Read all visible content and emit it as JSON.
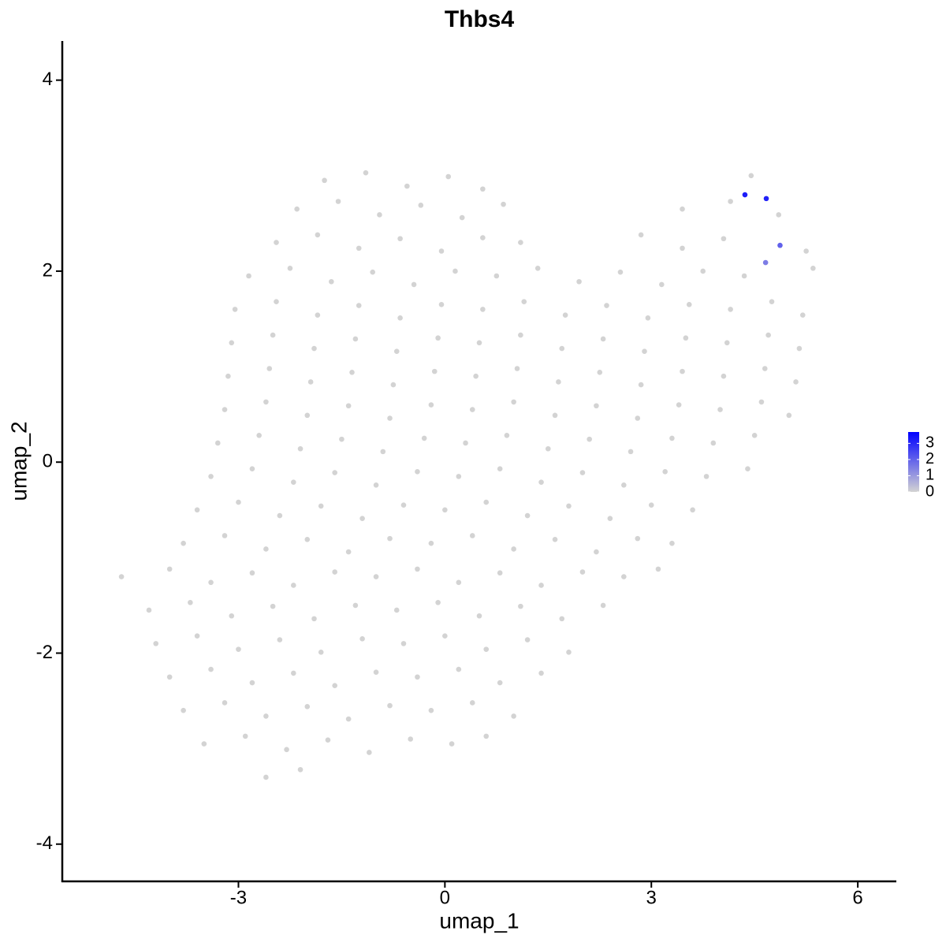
{
  "chart_data": {
    "type": "scatter",
    "title": "Thbs4",
    "x_label": "umap_1",
    "y_label": "umap_2",
    "xlim": [
      -5.56,
      6.56
    ],
    "ylim": [
      -4.39,
      4.41
    ],
    "xticks": [
      -3,
      0,
      3,
      6
    ],
    "yticks": [
      -4,
      -2,
      0,
      2,
      4
    ],
    "color_low": "#d3d3d3",
    "color_high": "#0000ff",
    "color_lim": [
      0,
      3.7
    ],
    "color_ticks": [
      0,
      1,
      2,
      3
    ],
    "x": [
      -1.75,
      -1.15,
      -0.55,
      0.05,
      0.55,
      4.45,
      -2.15,
      -1.55,
      -0.95,
      -0.35,
      0.25,
      0.85,
      3.45,
      4.15,
      4.85,
      -2.45,
      -1.85,
      -1.25,
      -0.65,
      -0.05,
      0.55,
      1.1,
      2.85,
      3.45,
      4.05,
      5.25,
      -2.85,
      -2.25,
      -1.65,
      -1.05,
      -0.45,
      0.15,
      0.75,
      1.35,
      1.95,
      2.55,
      3.15,
      3.75,
      4.35,
      5.35,
      -3.05,
      -2.45,
      -1.85,
      -1.25,
      -0.65,
      -0.05,
      0.55,
      1.15,
      1.75,
      2.35,
      2.95,
      3.55,
      4.15,
      4.75,
      5.2,
      -3.1,
      -2.5,
      -1.9,
      -1.3,
      -0.7,
      -0.1,
      0.5,
      1.1,
      1.7,
      2.3,
      2.9,
      3.5,
      4.1,
      4.7,
      5.15,
      -3.15,
      -2.55,
      -1.95,
      -1.35,
      -0.75,
      -0.15,
      0.45,
      1.05,
      1.65,
      2.25,
      2.85,
      3.45,
      4.05,
      4.65,
      5.1,
      -3.2,
      -2.6,
      -2.0,
      -1.4,
      -0.8,
      -0.2,
      0.4,
      1.0,
      1.6,
      2.2,
      2.8,
      3.4,
      4.0,
      4.6,
      5.0,
      -3.3,
      -2.7,
      -2.1,
      -1.5,
      -0.9,
      -0.3,
      0.3,
      0.9,
      1.5,
      2.1,
      2.7,
      3.3,
      3.9,
      4.5,
      -3.4,
      -2.8,
      -2.2,
      -1.6,
      -1.0,
      -0.4,
      0.2,
      0.8,
      1.4,
      2.0,
      2.6,
      3.2,
      3.8,
      4.4,
      -3.6,
      -3.0,
      -2.4,
      -1.8,
      -1.2,
      -0.6,
      0,
      0.6,
      1.2,
      1.8,
      2.4,
      3.0,
      3.6,
      -3.8,
      -3.2,
      -2.6,
      -2.0,
      -1.4,
      -0.8,
      -0.2,
      0.4,
      1.0,
      1.6,
      2.2,
      2.8,
      3.3,
      -4.7,
      -4.0,
      -3.4,
      -2.8,
      -2.2,
      -1.6,
      -1.0,
      -0.4,
      0.2,
      0.8,
      1.4,
      2.0,
      2.6,
      3.1,
      -4.3,
      -3.7,
      -3.1,
      -2.5,
      -1.9,
      -1.3,
      -0.7,
      -0.1,
      0.5,
      1.1,
      1.7,
      2.3,
      -4.2,
      -3.6,
      -3.0,
      -2.4,
      -1.8,
      -1.2,
      -0.6,
      0,
      0.6,
      1.2,
      1.8,
      -4.0,
      -3.4,
      -2.8,
      -2.2,
      -1.6,
      -1.0,
      -0.4,
      0.2,
      0.8,
      1.4,
      -3.8,
      -3.2,
      -2.6,
      -2.0,
      -1.4,
      -0.8,
      -0.2,
      0.4,
      1.0,
      -3.5,
      -2.9,
      -2.3,
      -1.7,
      -1.1,
      -0.5,
      0.1,
      0.6,
      -2.6,
      -2.1,
      4.36,
      4.67,
      4.87,
      4.66
    ],
    "y": [
      2.95,
      3.03,
      2.89,
      2.99,
      2.86,
      3.0,
      2.65,
      2.73,
      2.59,
      2.69,
      2.56,
      2.7,
      2.65,
      2.73,
      2.59,
      2.3,
      2.38,
      2.24,
      2.34,
      2.21,
      2.35,
      2.3,
      2.38,
      2.24,
      2.34,
      2.21,
      1.95,
      2.03,
      1.89,
      1.99,
      1.86,
      2.0,
      1.95,
      2.03,
      1.89,
      1.99,
      1.86,
      2.0,
      1.95,
      2.03,
      1.6,
      1.68,
      1.54,
      1.64,
      1.51,
      1.65,
      1.6,
      1.68,
      1.54,
      1.64,
      1.51,
      1.65,
      1.6,
      1.68,
      1.54,
      1.25,
      1.33,
      1.19,
      1.29,
      1.16,
      1.3,
      1.25,
      1.33,
      1.19,
      1.29,
      1.16,
      1.3,
      1.25,
      1.33,
      1.19,
      0.9,
      0.98,
      0.84,
      0.94,
      0.81,
      0.95,
      0.9,
      0.98,
      0.84,
      0.94,
      0.81,
      0.95,
      0.9,
      0.98,
      0.84,
      0.55,
      0.63,
      0.49,
      0.59,
      0.46,
      0.6,
      0.55,
      0.63,
      0.49,
      0.59,
      0.46,
      0.6,
      0.55,
      0.63,
      0.49,
      0.2,
      0.28,
      0.14,
      0.24,
      0.11,
      0.25,
      0.2,
      0.28,
      0.14,
      0.24,
      0.11,
      0.25,
      0.2,
      0.28,
      -0.15,
      -0.07,
      -0.21,
      -0.11,
      -0.24,
      -0.1,
      -0.15,
      -0.07,
      -0.21,
      -0.11,
      -0.24,
      -0.1,
      -0.15,
      -0.07,
      -0.5,
      -0.42,
      -0.56,
      -0.46,
      -0.59,
      -0.45,
      -0.5,
      -0.42,
      -0.56,
      -0.46,
      -0.59,
      -0.45,
      -0.5,
      -0.85,
      -0.77,
      -0.91,
      -0.81,
      -0.94,
      -0.8,
      -0.85,
      -0.77,
      -0.91,
      -0.81,
      -0.94,
      -0.8,
      -0.85,
      -1.2,
      -1.12,
      -1.26,
      -1.16,
      -1.29,
      -1.15,
      -1.2,
      -1.12,
      -1.26,
      -1.16,
      -1.29,
      -1.15,
      -1.2,
      -1.12,
      -1.55,
      -1.47,
      -1.61,
      -1.51,
      -1.64,
      -1.5,
      -1.55,
      -1.47,
      -1.61,
      -1.51,
      -1.64,
      -1.5,
      -1.9,
      -1.82,
      -1.96,
      -1.86,
      -1.99,
      -1.85,
      -1.9,
      -1.82,
      -1.96,
      -1.86,
      -1.99,
      -2.25,
      -2.17,
      -2.31,
      -2.21,
      -2.34,
      -2.2,
      -2.25,
      -2.17,
      -2.31,
      -2.21,
      -2.6,
      -2.52,
      -2.66,
      -2.56,
      -2.69,
      -2.55,
      -2.6,
      -2.52,
      -2.66,
      -2.95,
      -2.87,
      -3.01,
      -2.91,
      -3.04,
      -2.9,
      -2.95,
      -2.87,
      -3.3,
      -3.22,
      2.8,
      2.76,
      2.27,
      2.09
    ],
    "values": [
      0,
      0,
      0,
      0,
      0,
      0,
      0,
      0,
      0,
      0,
      0,
      0,
      0,
      0,
      0,
      0,
      0,
      0,
      0,
      0,
      0,
      0,
      0,
      0,
      0,
      0,
      0,
      0,
      0,
      0,
      0,
      0,
      0,
      0,
      0,
      0,
      0,
      0,
      0,
      0,
      0,
      0,
      0,
      0,
      0,
      0,
      0,
      0,
      0,
      0,
      0,
      0,
      0,
      0,
      0,
      0,
      0,
      0,
      0,
      0,
      0,
      0,
      0,
      0,
      0,
      0,
      0,
      0,
      0,
      0,
      0,
      0,
      0,
      0,
      0,
      0,
      0,
      0,
      0,
      0,
      0,
      0,
      0,
      0,
      0,
      0,
      0,
      0,
      0,
      0,
      0,
      0,
      0,
      0,
      0,
      0,
      0,
      0,
      0,
      0,
      0,
      0,
      0,
      0,
      0,
      0,
      0,
      0,
      0,
      0,
      0,
      0,
      0,
      0,
      0,
      0,
      0,
      0,
      0,
      0,
      0,
      0,
      0,
      0,
      0,
      0,
      0,
      0,
      0,
      0,
      0,
      0,
      0,
      0,
      0,
      0,
      0,
      0,
      0,
      0,
      0,
      0,
      0,
      0,
      0,
      0,
      0,
      0,
      0,
      0,
      0,
      0,
      0,
      0,
      0,
      0,
      0,
      0,
      0,
      0,
      0,
      0,
      0,
      0,
      0,
      0,
      0,
      0,
      0,
      0,
      0,
      0,
      0,
      0,
      0,
      0,
      0,
      0,
      0,
      0,
      0,
      0,
      0,
      0,
      0,
      0,
      0,
      0,
      0,
      0,
      0,
      0,
      0,
      0,
      0,
      0,
      0,
      0,
      0,
      0,
      0,
      0,
      0,
      0,
      0,
      0,
      0,
      0,
      0,
      0,
      0,
      0,
      0,
      0,
      0,
      0,
      0,
      0,
      0,
      0,
      3.2,
      3.1,
      2.0,
      1.5
    ]
  }
}
